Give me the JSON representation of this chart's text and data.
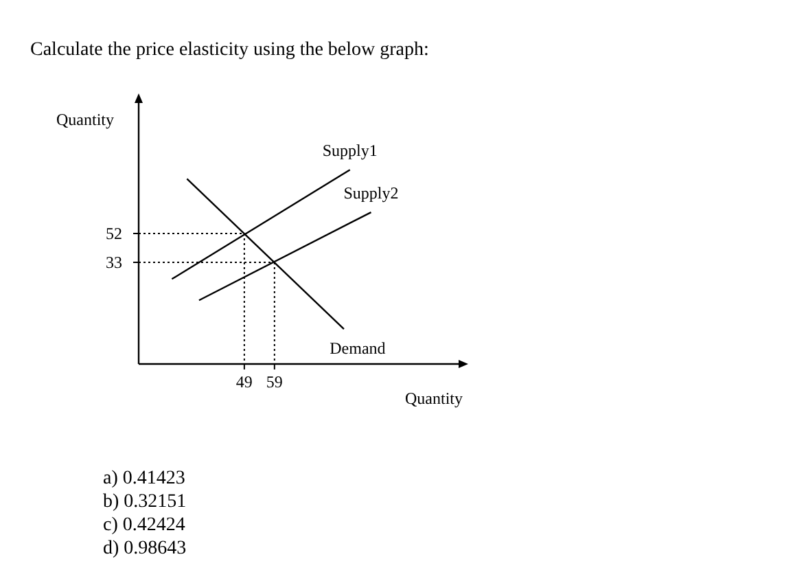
{
  "chart_data": {
    "type": "line",
    "title": "Calculate the price elasticity using the below graph:",
    "xlabel": "Quantity",
    "ylabel": "Quantity",
    "xlim": [
      14,
      120
    ],
    "ylim": [
      -34,
      138
    ],
    "xticks": [
      49,
      59
    ],
    "yticks": [
      52,
      33
    ],
    "grid": false,
    "legend": false,
    "marker": "none",
    "line_style": "solid",
    "series": [
      {
        "name": "Supply1",
        "color": "#000000",
        "x": [
          25,
          84
        ],
        "values": [
          22,
          94
        ]
      },
      {
        "name": "Supply2",
        "color": "#000000",
        "x": [
          34,
          91
        ],
        "values": [
          8,
          66
        ]
      },
      {
        "name": "Demand",
        "color": "#000000",
        "x": [
          30,
          82
        ],
        "values": [
          88,
          -11
        ]
      }
    ],
    "ref_lines": [
      {
        "axis": "y",
        "value": 52,
        "line_style": "dotted"
      },
      {
        "axis": "y",
        "value": 33,
        "line_style": "dotted"
      },
      {
        "axis": "x",
        "value": 49,
        "line_style": "dotted"
      },
      {
        "axis": "x",
        "value": 59,
        "line_style": "dotted"
      }
    ],
    "annotations": [
      "a)  0.41423",
      "b)  0.32151",
      "c)  0.42424",
      "d)  0.98643"
    ]
  }
}
